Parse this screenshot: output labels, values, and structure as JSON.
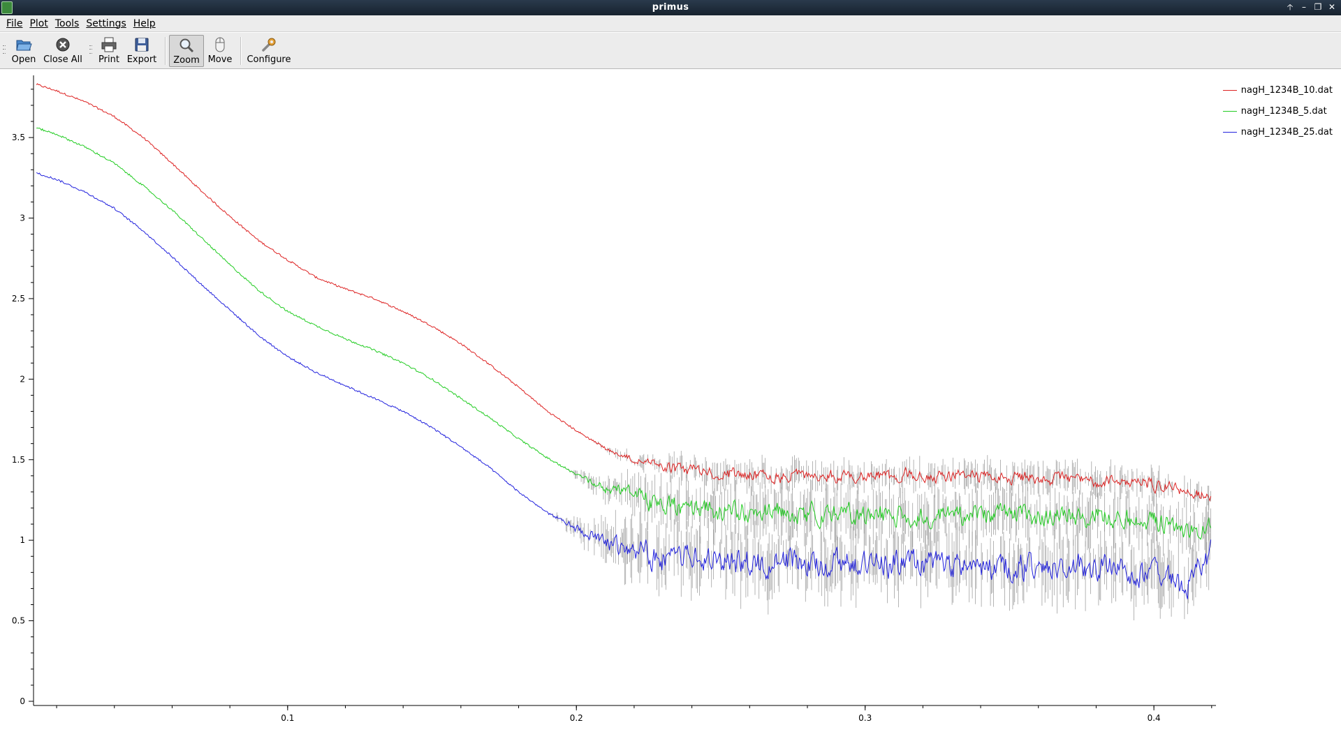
{
  "window": {
    "title": "primus"
  },
  "window_controls": [
    "🡡",
    "–",
    "❐",
    "✕"
  ],
  "menu": [
    "File",
    "Plot",
    "Tools",
    "Settings",
    "Help"
  ],
  "toolbar": {
    "buttons": [
      {
        "label": "Open",
        "icon": "folder-open-icon"
      },
      {
        "label": "Close All",
        "icon": "close-circle-icon"
      },
      {
        "label": "Print",
        "icon": "printer-icon"
      },
      {
        "label": "Export",
        "icon": "floppy-disk-icon"
      },
      {
        "label": "Zoom",
        "icon": "magnifier-icon",
        "active": true
      },
      {
        "label": "Move",
        "icon": "mouse-icon"
      },
      {
        "label": "Configure",
        "icon": "wrench-icon"
      }
    ]
  },
  "chart_data": {
    "type": "line",
    "title": "",
    "xlabel": "",
    "ylabel": "",
    "xlim": [
      0.012,
      0.4215
    ],
    "ylim": [
      0,
      3.86
    ],
    "x_ticks": [
      "0.1",
      "0.2",
      "0.3",
      "0.4"
    ],
    "y_ticks": [
      "0",
      "0.5",
      "1",
      "1.5",
      "2",
      "2.5",
      "3",
      "3.5"
    ],
    "legend_position": "top-right",
    "grid": false,
    "error_bars": true,
    "series": [
      {
        "name": "nagH_1234B_10.dat",
        "color": "#dd2222",
        "points": [
          [
            0.013,
            3.83
          ],
          [
            0.02,
            3.79
          ],
          [
            0.03,
            3.72
          ],
          [
            0.04,
            3.63
          ],
          [
            0.05,
            3.5
          ],
          [
            0.06,
            3.34
          ],
          [
            0.07,
            3.17
          ],
          [
            0.08,
            3.01
          ],
          [
            0.09,
            2.86
          ],
          [
            0.1,
            2.74
          ],
          [
            0.11,
            2.63
          ],
          [
            0.12,
            2.56
          ],
          [
            0.13,
            2.5
          ],
          [
            0.14,
            2.42
          ],
          [
            0.15,
            2.33
          ],
          [
            0.16,
            2.22
          ],
          [
            0.17,
            2.09
          ],
          [
            0.18,
            1.95
          ],
          [
            0.19,
            1.8
          ],
          [
            0.2,
            1.68
          ],
          [
            0.21,
            1.57
          ],
          [
            0.22,
            1.5
          ],
          [
            0.23,
            1.46
          ],
          [
            0.24,
            1.43
          ],
          [
            0.25,
            1.41
          ],
          [
            0.26,
            1.4
          ],
          [
            0.28,
            1.4
          ],
          [
            0.3,
            1.4
          ],
          [
            0.32,
            1.4
          ],
          [
            0.34,
            1.39
          ],
          [
            0.36,
            1.38
          ],
          [
            0.38,
            1.37
          ],
          [
            0.4,
            1.35
          ],
          [
            0.41,
            1.33
          ],
          [
            0.42,
            1.25
          ]
        ],
        "noise_start": 0.205,
        "noise_amp": 0.06
      },
      {
        "name": "nagH_1234B_5.dat",
        "color": "#22cc22",
        "points": [
          [
            0.013,
            3.56
          ],
          [
            0.02,
            3.52
          ],
          [
            0.03,
            3.44
          ],
          [
            0.04,
            3.34
          ],
          [
            0.05,
            3.2
          ],
          [
            0.06,
            3.05
          ],
          [
            0.07,
            2.88
          ],
          [
            0.08,
            2.71
          ],
          [
            0.09,
            2.55
          ],
          [
            0.1,
            2.42
          ],
          [
            0.11,
            2.33
          ],
          [
            0.12,
            2.25
          ],
          [
            0.13,
            2.18
          ],
          [
            0.14,
            2.1
          ],
          [
            0.15,
            2.0
          ],
          [
            0.16,
            1.88
          ],
          [
            0.17,
            1.76
          ],
          [
            0.18,
            1.63
          ],
          [
            0.19,
            1.51
          ],
          [
            0.2,
            1.41
          ],
          [
            0.21,
            1.33
          ],
          [
            0.22,
            1.27
          ],
          [
            0.23,
            1.22
          ],
          [
            0.24,
            1.19
          ],
          [
            0.25,
            1.18
          ],
          [
            0.26,
            1.17
          ],
          [
            0.28,
            1.17
          ],
          [
            0.3,
            1.16
          ],
          [
            0.32,
            1.16
          ],
          [
            0.34,
            1.15
          ],
          [
            0.36,
            1.15
          ],
          [
            0.38,
            1.14
          ],
          [
            0.4,
            1.12
          ],
          [
            0.41,
            1.05
          ],
          [
            0.42,
            1.1
          ]
        ],
        "noise_start": 0.195,
        "noise_amp": 0.1
      },
      {
        "name": "nagH_1234B_25.dat",
        "color": "#2222dd",
        "points": [
          [
            0.013,
            3.28
          ],
          [
            0.02,
            3.24
          ],
          [
            0.03,
            3.16
          ],
          [
            0.04,
            3.06
          ],
          [
            0.05,
            2.92
          ],
          [
            0.06,
            2.76
          ],
          [
            0.07,
            2.59
          ],
          [
            0.08,
            2.43
          ],
          [
            0.09,
            2.27
          ],
          [
            0.1,
            2.14
          ],
          [
            0.11,
            2.04
          ],
          [
            0.12,
            1.96
          ],
          [
            0.13,
            1.88
          ],
          [
            0.14,
            1.8
          ],
          [
            0.15,
            1.7
          ],
          [
            0.16,
            1.58
          ],
          [
            0.17,
            1.45
          ],
          [
            0.18,
            1.3
          ],
          [
            0.19,
            1.17
          ],
          [
            0.2,
            1.07
          ],
          [
            0.21,
            0.98
          ],
          [
            0.22,
            0.92
          ],
          [
            0.23,
            0.89
          ],
          [
            0.24,
            0.87
          ],
          [
            0.25,
            0.86
          ],
          [
            0.26,
            0.86
          ],
          [
            0.28,
            0.86
          ],
          [
            0.3,
            0.85
          ],
          [
            0.32,
            0.85
          ],
          [
            0.34,
            0.84
          ],
          [
            0.36,
            0.83
          ],
          [
            0.38,
            0.83
          ],
          [
            0.4,
            0.8
          ],
          [
            0.41,
            0.7
          ],
          [
            0.42,
            0.92
          ]
        ],
        "noise_start": 0.19,
        "noise_amp": 0.13
      }
    ]
  }
}
